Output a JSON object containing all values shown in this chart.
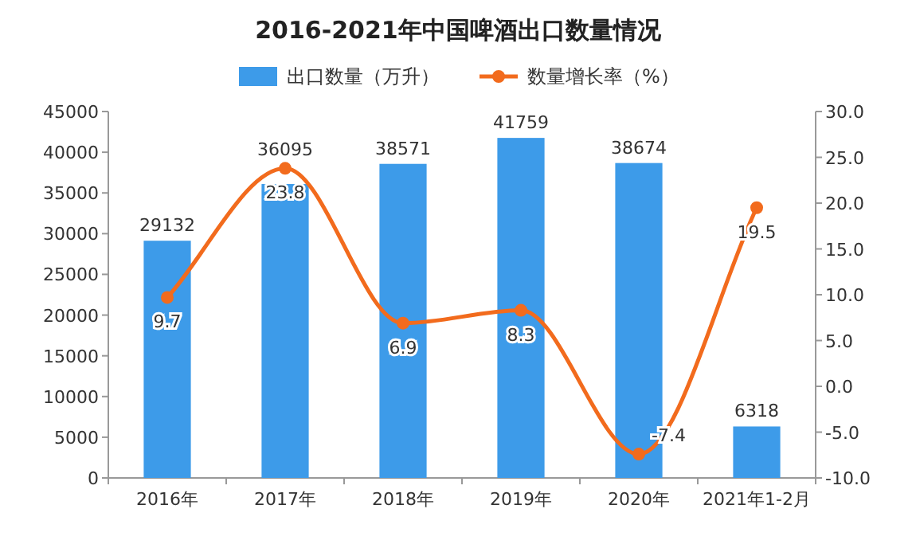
{
  "chart_data": {
    "type": "bar",
    "title": "2016-2021年中国啤酒出口数量情况",
    "categories": [
      "2016年",
      "2017年",
      "2018年",
      "2019年",
      "2020年",
      "2021年1-2月"
    ],
    "series": [
      {
        "name": "出口数量（万升）",
        "color": "#3d9be9",
        "values": [
          29132,
          36095,
          38571,
          41759,
          38674,
          6318
        ]
      },
      {
        "name": "数量增长率（%）",
        "type": "line",
        "axis": "y2",
        "color": "#f26b1d",
        "values": [
          9.7,
          23.8,
          6.9,
          8.3,
          -7.4,
          19.5
        ]
      }
    ],
    "ylim": [
      0,
      45000
    ],
    "yticks": [
      0,
      5000,
      10000,
      15000,
      20000,
      25000,
      30000,
      35000,
      40000,
      45000
    ],
    "y2lim": [
      -10,
      30
    ],
    "y2ticks": [
      {
        "value": -10,
        "label": "-10.0"
      },
      {
        "value": -5,
        "label": "-5.0"
      },
      {
        "value": 0,
        "label": "0.0"
      },
      {
        "value": 5,
        "label": "5.0"
      },
      {
        "value": 10,
        "label": "10.0"
      },
      {
        "value": 15,
        "label": "15.0"
      },
      {
        "value": 20,
        "label": "20.0"
      },
      {
        "value": 25,
        "label": "25.0"
      },
      {
        "value": 30,
        "label": "30.0"
      }
    ],
    "marker": "circle",
    "legend": "top",
    "data_labels": true
  }
}
